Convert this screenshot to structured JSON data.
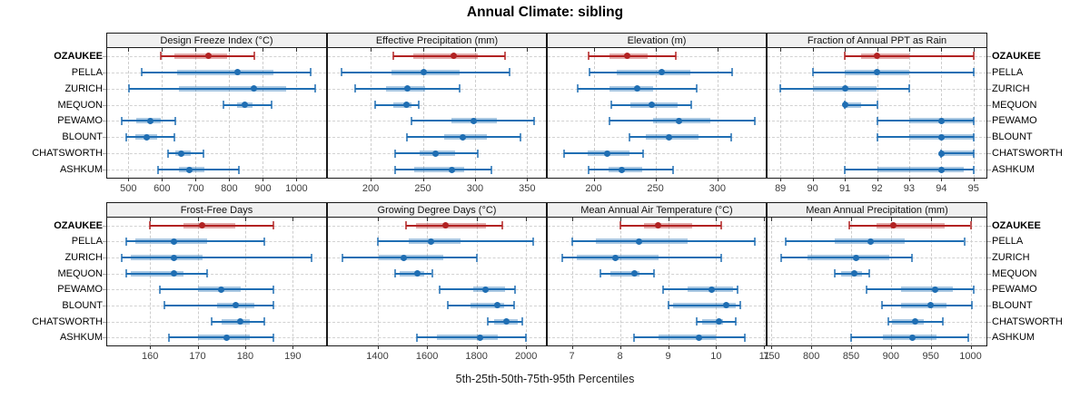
{
  "title": "Annual Climate: sibling",
  "caption": "5th-25th-50th-75th-95th Percentiles",
  "sites": [
    "OZAUKEE",
    "PELLA",
    "ZURICH",
    "MEQUON",
    "PEWAMO",
    "BLOUNT",
    "CHATSWORTH",
    "ASHKUM"
  ],
  "highlight_site": "OZAUKEE",
  "colors": {
    "highlight": "#B22222",
    "highlight_band": "rgba(178,34,34,0.38)",
    "normal": "#1F6EB3",
    "normal_band": "rgba(31,110,179,0.38)",
    "strip_bg": "#F0F0F0",
    "panel_border": "#1A1A1A",
    "grid": "#CDCDCD",
    "tick_label": "#3D3D3D"
  },
  "chart_data": {
    "type": "interval",
    "note": "5th-25th-50th-75th-95th percentile intervals per site; thin line 5-95, thick band 25-75, dot = median",
    "percentiles": [
      "5th",
      "25th",
      "50th",
      "75th",
      "95th"
    ],
    "layout": "2 rows x 4 cols lattice, free x scales, shared site y-axis",
    "panels": [
      {
        "title": "Design Freeze Index (°C)",
        "xlim": [
          437,
          1088
        ],
        "ticks": [
          500,
          600,
          700,
          800,
          900,
          1000
        ],
        "series": [
          [
            596,
            636,
            739,
            794,
            874
          ],
          [
            540,
            645,
            824,
            931,
            1042
          ],
          [
            502,
            649,
            873,
            968,
            1056
          ],
          [
            783,
            824,
            846,
            868,
            926
          ],
          [
            481,
            524,
            564,
            596,
            640
          ],
          [
            493,
            520,
            554,
            587,
            638
          ],
          [
            618,
            640,
            656,
            685,
            722
          ],
          [
            587,
            649,
            680,
            725,
            828
          ]
        ]
      },
      {
        "title": "Effective Precipitation (mm)",
        "xlim": [
          159,
          368
        ],
        "ticks": [
          200,
          250,
          300,
          350
        ],
        "series": [
          [
            222,
            241,
            280,
            303,
            329
          ],
          [
            172,
            220,
            251,
            285,
            333
          ],
          [
            185,
            215,
            235,
            252,
            285
          ],
          [
            204,
            222,
            234,
            239,
            246
          ],
          [
            239,
            277,
            299,
            321,
            357
          ],
          [
            235,
            270,
            288,
            311,
            344
          ],
          [
            223,
            247,
            262,
            281,
            303
          ],
          [
            223,
            242,
            278,
            290,
            316
          ]
        ]
      },
      {
        "title": "Elevation (m)",
        "xlim": [
          163,
          339
        ],
        "ticks": [
          200,
          250,
          300
        ],
        "series": [
          [
            196,
            213,
            227,
            244,
            266
          ],
          [
            197,
            219,
            255,
            278,
            312
          ],
          [
            187,
            213,
            235,
            248,
            283
          ],
          [
            214,
            230,
            247,
            268,
            279
          ],
          [
            213,
            248,
            269,
            294,
            330
          ],
          [
            229,
            242,
            261,
            285,
            311
          ],
          [
            176,
            195,
            211,
            229,
            240
          ],
          [
            196,
            212,
            223,
            239,
            264
          ]
        ]
      },
      {
        "title": "Fraction of Annual PPT as Rain",
        "xlim": [
          88.6,
          95.4
        ],
        "ticks": [
          89,
          90,
          91,
          92,
          93,
          94,
          95
        ],
        "series": [
          [
            91,
            91.5,
            92,
            93,
            95
          ],
          [
            90,
            91,
            92,
            93,
            95
          ],
          [
            89,
            90,
            91,
            92,
            93
          ],
          [
            91,
            91,
            91,
            91.5,
            92
          ],
          [
            92,
            93,
            94,
            95,
            95
          ],
          [
            92,
            93,
            94,
            95,
            95
          ],
          [
            94,
            94,
            94,
            95,
            95
          ],
          [
            91,
            92,
            94,
            94.7,
            95
          ]
        ]
      },
      {
        "title": "Frost-Free Days",
        "xlim": [
          151,
          197
        ],
        "ticks": [
          160,
          170,
          180,
          190
        ],
        "series": [
          [
            160,
            167,
            171,
            178,
            186
          ],
          [
            155,
            157,
            165,
            172,
            184
          ],
          [
            154,
            156,
            165,
            171,
            194
          ],
          [
            155,
            156,
            165,
            167,
            172
          ],
          [
            162,
            170,
            175,
            179,
            186
          ],
          [
            163,
            174,
            178,
            182,
            186
          ],
          [
            173,
            175,
            179,
            181,
            184
          ],
          [
            164,
            170,
            176,
            181,
            186
          ]
        ]
      },
      {
        "title": "Growing Degree Days (°C)",
        "xlim": [
          1200,
          2080
        ],
        "ticks": [
          1400,
          1600,
          1800,
          2000
        ],
        "series": [
          [
            1515,
            1555,
            1675,
            1840,
            1905
          ],
          [
            1400,
            1525,
            1615,
            1735,
            2030
          ],
          [
            1260,
            1405,
            1505,
            1665,
            1800
          ],
          [
            1470,
            1490,
            1560,
            1590,
            1620
          ],
          [
            1650,
            1785,
            1835,
            1915,
            1955
          ],
          [
            1685,
            1775,
            1885,
            1910,
            1950
          ],
          [
            1845,
            1870,
            1920,
            1965,
            1985
          ],
          [
            1560,
            1640,
            1815,
            1885,
            2000
          ]
        ]
      },
      {
        "title": "Mean Annual Air Temperature (°C)",
        "xlim": [
          6.5,
          11.03
        ],
        "ticks": [
          7,
          8,
          9,
          10,
          11
        ],
        "series": [
          [
            8.0,
            8.5,
            8.8,
            9.5,
            10.1
          ],
          [
            7.0,
            7.5,
            8.4,
            9.4,
            10.8
          ],
          [
            6.8,
            7.1,
            7.9,
            8.8,
            10.1
          ],
          [
            7.6,
            7.8,
            8.3,
            8.4,
            8.7
          ],
          [
            8.9,
            9.4,
            9.9,
            10.35,
            10.45
          ],
          [
            9.0,
            9.1,
            10.2,
            10.4,
            10.5
          ],
          [
            9.6,
            9.7,
            10.05,
            10.15,
            10.4
          ],
          [
            8.3,
            8.8,
            9.65,
            10.0,
            10.6
          ]
        ]
      },
      {
        "title": "Mean Annual Precipitation (mm)",
        "xlim": [
          745,
          1020
        ],
        "ticks": [
          750,
          800,
          850,
          900,
          950,
          1000
        ],
        "series": [
          [
            848,
            882,
            903,
            968,
            1000
          ],
          [
            768,
            829,
            875,
            917,
            992
          ],
          [
            762,
            795,
            856,
            898,
            926
          ],
          [
            829,
            837,
            854,
            864,
            873
          ],
          [
            869,
            913,
            955,
            978,
            1004
          ],
          [
            889,
            913,
            950,
            970,
            1002
          ],
          [
            897,
            901,
            930,
            941,
            965
          ],
          [
            850,
            890,
            927,
            957,
            997
          ]
        ]
      }
    ]
  }
}
